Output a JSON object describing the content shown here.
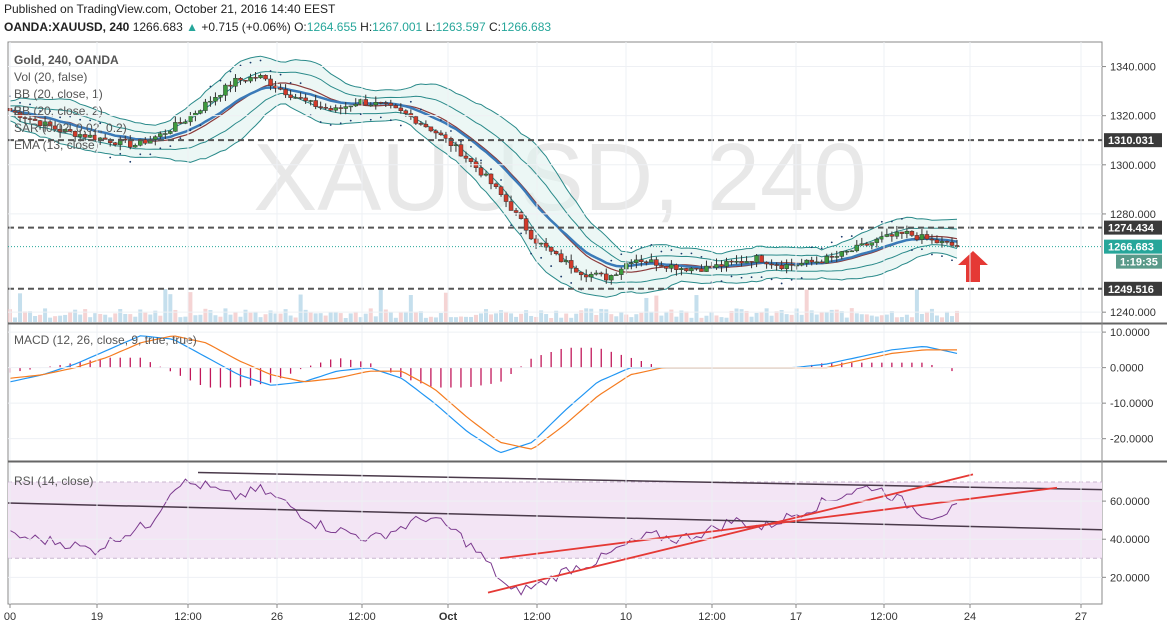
{
  "header": {
    "published": "Published on TradingView.com, October 21, 2016 14:40 EEST",
    "symbol": "OANDA:XAUUSD, 240",
    "last": "1266.683",
    "change": "+0.715 (+0.06%)",
    "o_label": "O:",
    "o": "1264.655",
    "h_label": "H:",
    "h": "1267.001",
    "l_label": "L:",
    "l": "1263.597",
    "c_label": "C:",
    "c": "1266.683"
  },
  "watermark": "XAUUSD, 240",
  "price_pane": {
    "legend": [
      "Gold, 240, OANDA",
      "Vol (20, false)",
      "BB (20, close, 1)",
      "BB (20, close, 2)",
      "SAR (0.02, 0.02, 0.2)",
      "EMA (13, close)"
    ],
    "y_ticks": [
      1340,
      1320,
      1300,
      1280,
      1240
    ],
    "y_tick_labels": [
      "1340.000",
      "1320.000",
      "1300.000",
      "1280.000",
      "1240.000"
    ],
    "ylim": [
      1236,
      1350
    ],
    "levels": [
      {
        "value": 1310.031,
        "label": "1310.031",
        "style": "dashed"
      },
      {
        "value": 1274.434,
        "label": "1274.434",
        "style": "dashed"
      },
      {
        "value": 1249.516,
        "label": "1249.516",
        "style": "dashed"
      }
    ],
    "last_price": {
      "value": 1266.683,
      "label": "1266.683",
      "countdown": "1:19:35",
      "color": "#26a69a"
    }
  },
  "macd_pane": {
    "legend": "MACD (12, 26, close, 9, true, true)",
    "y_ticks": [
      10,
      0,
      -10,
      -20
    ],
    "y_tick_labels": [
      "10.0000",
      "0.0000",
      "-10.0000",
      "-20.0000"
    ],
    "ylim": [
      -26,
      12
    ]
  },
  "rsi_pane": {
    "legend": "RSI (14, close)",
    "y_ticks": [
      60,
      40,
      20
    ],
    "y_tick_labels": [
      "60.0000",
      "40.0000",
      "20.0000"
    ],
    "ylim": [
      6,
      80
    ],
    "band": [
      30,
      70
    ]
  },
  "x_axis": {
    "ticks": [
      "00",
      "19",
      "12:00",
      "26",
      "12:00",
      "Oct",
      "12:00",
      "10",
      "12:00",
      "17",
      "12:00",
      "24",
      "27"
    ],
    "bold": [
      "Oct"
    ]
  },
  "colors": {
    "up": "#3c9a3c",
    "down": "#d23a2a",
    "bb1": "#2a8a8a",
    "ema": "#3a7ab8",
    "sma": "#8b3a3a",
    "macd": "#2196f3",
    "signal": "#f57c20",
    "hist": "#c2185b",
    "rsi": "#7b3a8e",
    "rsi_band": "#f3e5f5",
    "trend_red": "#e53935",
    "trend_dark": "#4a3a4a",
    "arrow": "#e53935"
  },
  "chart_data": {
    "type": "candlestick",
    "instrument": "OANDA:XAUUSD",
    "interval": "240",
    "x": [
      "00",
      "19",
      "12:00",
      "26",
      "12:00",
      "Oct",
      "12:00",
      "10",
      "12:00",
      "17",
      "12:00",
      "24",
      "27"
    ],
    "close_path": [
      1322,
      1318,
      1314,
      1312,
      1310,
      1308,
      1312,
      1318,
      1326,
      1334,
      1336,
      1330,
      1325,
      1322,
      1326,
      1324,
      1320,
      1314,
      1306,
      1296,
      1284,
      1270,
      1262,
      1256,
      1254,
      1262,
      1260,
      1258,
      1258,
      1260,
      1262,
      1259,
      1260,
      1262,
      1266,
      1270,
      1272,
      1269,
      1266.683
    ],
    "levels": [
      1310.031,
      1274.434,
      1249.516
    ],
    "last": 1266.683,
    "ohlc_last": {
      "open": 1264.655,
      "high": 1267.001,
      "low": 1263.597,
      "close": 1266.683
    }
  }
}
